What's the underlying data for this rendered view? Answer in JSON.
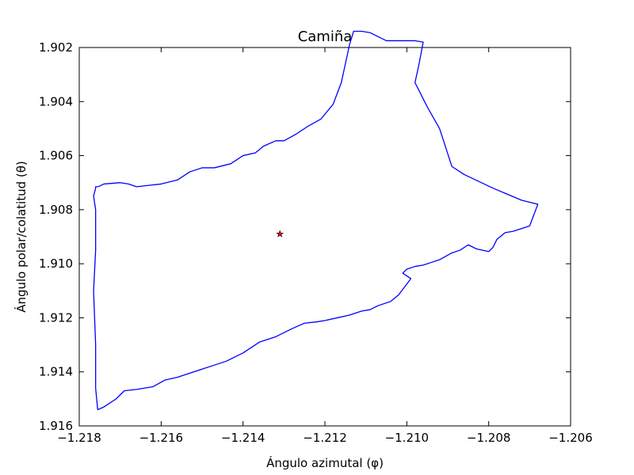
{
  "chart_data": {
    "type": "line",
    "title": "Camiña",
    "xlabel": "Ángulo azimutal (φ)",
    "ylabel": "Ángulo polar/colatitud (θ)",
    "xlim": [
      -1.218,
      -1.206
    ],
    "ylim": [
      1.902,
      1.916
    ],
    "y_inverted": true,
    "grid": false,
    "x_ticks": [
      -1.218,
      -1.216,
      -1.214,
      -1.212,
      -1.21,
      -1.208,
      -1.206
    ],
    "x_tick_labels": [
      "−1.218",
      "−1.216",
      "−1.214",
      "−1.212",
      "−1.210",
      "−1.208",
      "−1.206"
    ],
    "y_ticks": [
      1.902,
      1.904,
      1.906,
      1.908,
      1.91,
      1.912,
      1.914,
      1.916
    ],
    "y_tick_labels": [
      "1.902",
      "1.904",
      "1.906",
      "1.908",
      "1.910",
      "1.912",
      "1.914",
      "1.916"
    ],
    "series": [
      {
        "color": "#0000ff",
        "x": [
          -1.21754,
          -1.2174,
          -1.217,
          -1.2168,
          -1.2166,
          -1.2163,
          -1.216,
          -1.2156,
          -1.2153,
          -1.215,
          -1.2147,
          -1.2143,
          -1.214,
          -1.2137,
          -1.2135,
          -1.2132,
          -1.213,
          -1.2127,
          -1.2124,
          -1.2121,
          -1.2118,
          -1.2116,
          -1.2115,
          -1.2114,
          -1.2113,
          -1.2111,
          -1.2109,
          -1.2107,
          -1.2105,
          -1.2102,
          -1.21,
          -1.2098,
          -1.2096,
          -1.2097,
          -1.2098,
          -1.2095,
          -1.2092,
          -1.2089,
          -1.2086,
          -1.2079,
          -1.2072,
          -1.2068,
          -1.207,
          -1.2074,
          -1.2076,
          -1.2078,
          -1.2079,
          -1.208,
          -1.2083,
          -1.2085,
          -1.2087,
          -1.2089,
          -1.2092,
          -1.2094,
          -1.2096,
          -1.2098,
          -1.21,
          -1.2101,
          -1.2099,
          -1.21,
          -1.2102,
          -1.2104,
          -1.2107,
          -1.2109,
          -1.2111,
          -1.2114,
          -1.2117,
          -1.212,
          -1.2122,
          -1.2125,
          -1.2128,
          -1.2132,
          -1.2136,
          -1.214,
          -1.2144,
          -1.2147,
          -1.215,
          -1.2153,
          -1.2156,
          -1.2159,
          -1.2162,
          -1.2166,
          -1.2169,
          -1.2171,
          -1.2174,
          -1.21755,
          -1.2176,
          -1.2176,
          -1.2176,
          -1.21765,
          -1.2176,
          -1.2176,
          -1.21765,
          -1.2176,
          -1.2176,
          -1.21754
        ],
        "y": [
          1.90715,
          1.90705,
          1.907,
          1.90705,
          1.90715,
          1.9071,
          1.90705,
          1.9069,
          1.9066,
          1.90645,
          1.90645,
          1.9063,
          1.906,
          1.9059,
          1.90565,
          1.90545,
          1.90545,
          1.9052,
          1.9049,
          1.90465,
          1.9041,
          1.9033,
          1.9026,
          1.9019,
          1.9014,
          1.9014,
          1.90145,
          1.9016,
          1.90175,
          1.90175,
          1.90175,
          1.90175,
          1.9018,
          1.9026,
          1.9033,
          1.9042,
          1.905,
          1.9064,
          1.9067,
          1.9072,
          1.90765,
          1.9078,
          1.9086,
          1.9088,
          1.90885,
          1.9091,
          1.9094,
          1.90955,
          1.90945,
          1.9093,
          1.9095,
          1.9096,
          1.90985,
          1.90995,
          1.91005,
          1.9101,
          1.9102,
          1.91035,
          1.91055,
          1.91075,
          1.91115,
          1.9114,
          1.91155,
          1.9117,
          1.91175,
          1.9119,
          1.912,
          1.9121,
          1.91215,
          1.9122,
          1.9124,
          1.9127,
          1.9129,
          1.9133,
          1.9136,
          1.91375,
          1.9139,
          1.91405,
          1.9142,
          1.9143,
          1.91455,
          1.91465,
          1.9147,
          1.915,
          1.9153,
          1.9154,
          1.9146,
          1.9138,
          1.913,
          1.911,
          1.9095,
          1.908,
          1.9075,
          1.9072,
          1.90715,
          1.90715
        ]
      }
    ],
    "marker": {
      "x": -1.2131,
      "y": 1.9089,
      "color": "#ff0000",
      "shape": "star"
    }
  }
}
